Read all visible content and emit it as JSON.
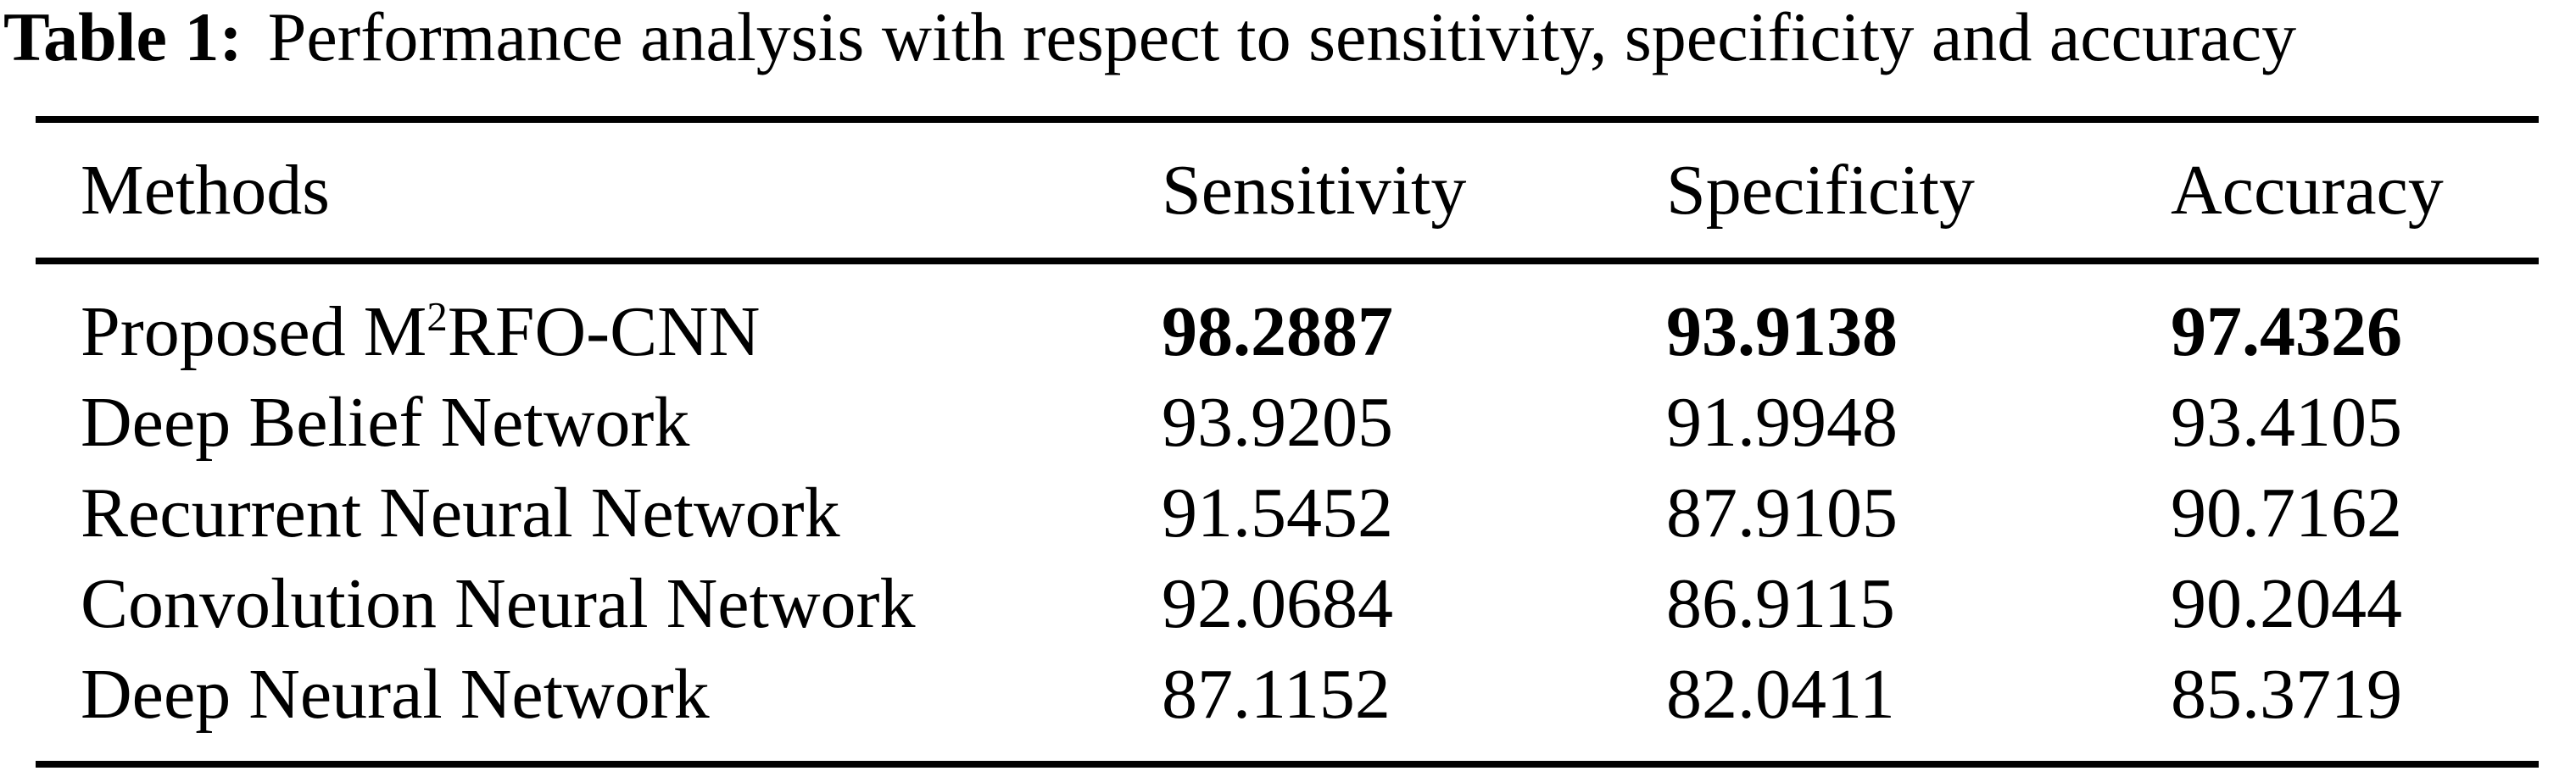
{
  "caption": {
    "label": "Table 1:",
    "text": "Performance analysis with respect to sensitivity, specificity and accuracy"
  },
  "table": {
    "columns": [
      "Methods",
      "Sensitivity",
      "Specificity",
      "Accuracy"
    ],
    "rows": [
      {
        "method_parts": {
          "prefix": "Proposed M",
          "sup": "2",
          "suffix": "RFO-CNN"
        },
        "sensitivity": "98.2887",
        "specificity": "93.9138",
        "accuracy": "97.4326",
        "emphasis": "bold"
      },
      {
        "method": "Deep Belief Network",
        "sensitivity": "93.9205",
        "specificity": "91.9948",
        "accuracy": "93.4105"
      },
      {
        "method": "Recurrent Neural Network",
        "sensitivity": "91.5452",
        "specificity": "87.9105",
        "accuracy": "90.7162"
      },
      {
        "method": "Convolution Neural Network",
        "sensitivity": "92.0684",
        "specificity": "86.9115",
        "accuracy": "90.2044"
      },
      {
        "method": "Deep Neural Network",
        "sensitivity": "87.1152",
        "specificity": "82.0411",
        "accuracy": "85.3719"
      }
    ]
  },
  "colors": {
    "text": "#000000",
    "background": "#ffffff",
    "rule": "#000000"
  }
}
